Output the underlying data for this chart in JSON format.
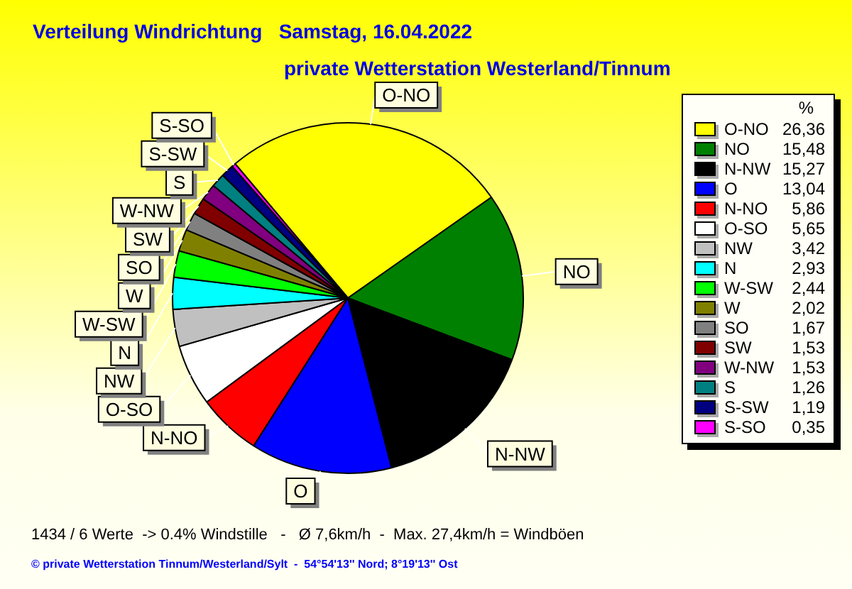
{
  "chart_data": {
    "type": "pie",
    "title": "Verteilung Windrichtung   Samstag, 16.04.2022",
    "subtitle": "private Wetterstation Westerland/Tinnum",
    "legend_title": "%",
    "legend": "right",
    "categories": [
      "O-NO",
      "NO",
      "N-NW",
      "O",
      "N-NO",
      "O-SO",
      "NW",
      "N",
      "W-SW",
      "W",
      "SO",
      "SW",
      "W-NW",
      "S",
      "S-SW",
      "S-SO"
    ],
    "values": [
      26.36,
      15.48,
      15.27,
      13.04,
      5.86,
      5.65,
      3.42,
      2.93,
      2.44,
      2.02,
      1.67,
      1.53,
      1.53,
      1.26,
      1.19,
      0.35
    ],
    "value_labels": [
      "26,36",
      "15,48",
      "15,27",
      "13,04",
      "5,86",
      "5,65",
      "3,42",
      "2,93",
      "2,44",
      "2,02",
      "1,67",
      "1,53",
      "1,53",
      "1,26",
      "1,19",
      "0,35"
    ],
    "colors": [
      "#ffff00",
      "#008000",
      "#000000",
      "#0000ff",
      "#ff0000",
      "#ffffff",
      "#c0c0c0",
      "#00ffff",
      "#00ff00",
      "#808000",
      "#808080",
      "#800000",
      "#800080",
      "#008080",
      "#000080",
      "#ff00ff"
    ],
    "annotations": [
      "1434 / 6 Werte  -> 0.4% Windstille   -   Ø 7,6km/h  -  Max. 27,4km/h = Windböen",
      "© private Wetterstation Tinnum/Westerland/Sylt  -  54°54'13'' Nord; 8°19'13'' Ost"
    ]
  }
}
